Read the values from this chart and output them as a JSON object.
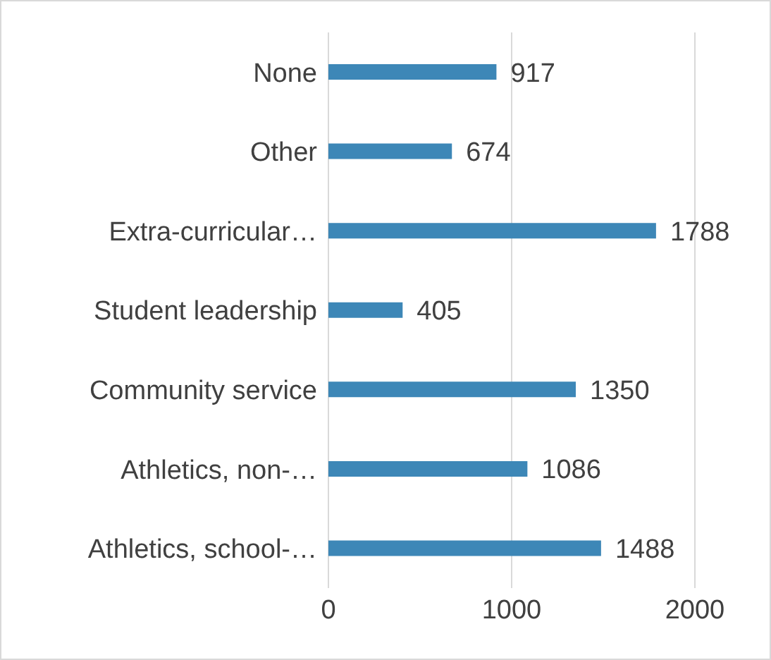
{
  "chart_data": {
    "type": "bar",
    "orientation": "horizontal",
    "categories": [
      "None",
      "Other",
      "Extra-curricular…",
      "Student leadership",
      "Community service",
      "Athletics, non-…",
      "Athletics, school-…"
    ],
    "values": [
      917,
      674,
      1788,
      405,
      1350,
      1086,
      1488
    ],
    "color": "#3d87b7",
    "xlim": [
      0,
      2000
    ],
    "xticks": [
      0,
      1000,
      2000
    ],
    "grid": "x",
    "data_labels": true
  }
}
